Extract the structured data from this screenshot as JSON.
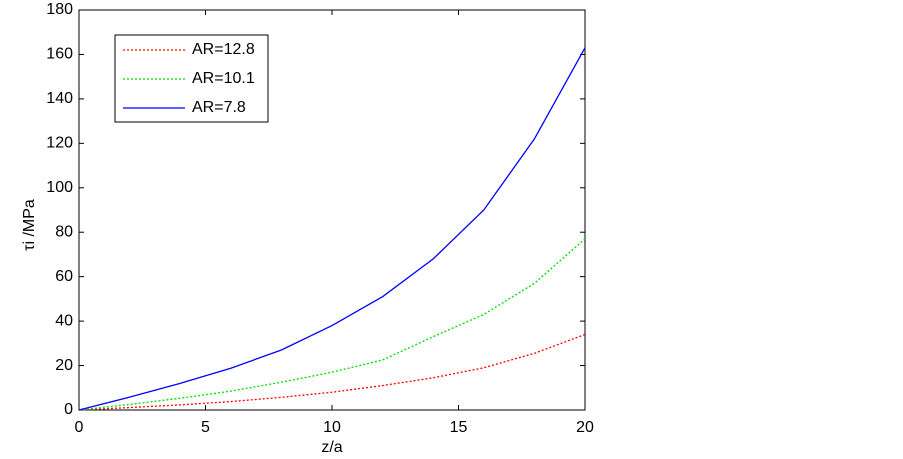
{
  "chart_data": {
    "type": "line",
    "x_label": "z/a",
    "y_label": "τi /MPa",
    "x": [
      0,
      2,
      4,
      6,
      8,
      10,
      12,
      14,
      16,
      18,
      20
    ],
    "series": [
      {
        "name": "AR=12.8",
        "color": "#ff0000",
        "style": "dotted",
        "values": [
          0,
          1.1,
          2.3,
          3.8,
          5.7,
          8,
          11,
          14.5,
          19,
          25.5,
          34
        ]
      },
      {
        "name": "AR=10.1",
        "color": "#00dd00",
        "style": "dotted",
        "values": [
          0,
          2.5,
          5.3,
          8.5,
          12.5,
          17,
          22.5,
          33,
          43,
          57,
          77
        ]
      },
      {
        "name": "AR=7.8",
        "color": "#0000ff",
        "style": "solid",
        "values": [
          0,
          5.8,
          12,
          18.8,
          27,
          38,
          51,
          68,
          90,
          122,
          163
        ]
      }
    ],
    "xlim": [
      0,
      20
    ],
    "xticks": [
      0,
      5,
      10,
      15,
      20
    ],
    "ylim": [
      0,
      180
    ],
    "yticks": [
      0,
      20,
      40,
      60,
      80,
      100,
      120,
      140,
      160,
      180
    ],
    "grid": false,
    "legend": "upper left"
  }
}
